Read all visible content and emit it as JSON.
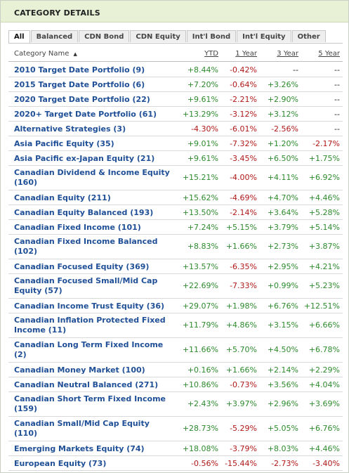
{
  "panel": {
    "title": "CATEGORY DETAILS"
  },
  "tabs": [
    {
      "label": "All",
      "active": true
    },
    {
      "label": "Balanced",
      "active": false
    },
    {
      "label": "CDN Bond",
      "active": false
    },
    {
      "label": "CDN Equity",
      "active": false
    },
    {
      "label": "Int'l Bond",
      "active": false
    },
    {
      "label": "Int'l Equity",
      "active": false
    },
    {
      "label": "Other",
      "active": false
    }
  ],
  "columns": {
    "name": "Category Name",
    "sort_indicator": "▲",
    "ytd": "YTD",
    "y1": "1 Year",
    "y3": "3 Year",
    "y5": "5 Year"
  },
  "colors": {
    "positive": "#2e8b2e",
    "negative": "#b01818",
    "link": "#1f4f96",
    "header_bg": "#e8f0d6"
  },
  "rows": [
    {
      "name": "2010 Target Date Portfolio (9)",
      "ytd": "+8.44%",
      "y1": "-0.42%",
      "y3": "--",
      "y5": "--"
    },
    {
      "name": "2015 Target Date Portfolio (6)",
      "ytd": "+7.20%",
      "y1": "-0.64%",
      "y3": "+3.26%",
      "y5": "--"
    },
    {
      "name": "2020 Target Date Portfolio (22)",
      "ytd": "+9.61%",
      "y1": "-2.21%",
      "y3": "+2.90%",
      "y5": "--"
    },
    {
      "name": "2020+ Target Date Portfolio (61)",
      "ytd": "+13.29%",
      "y1": "-3.12%",
      "y3": "+3.12%",
      "y5": "--"
    },
    {
      "name": "Alternative Strategies (3)",
      "ytd": "-4.30%",
      "y1": "-6.01%",
      "y3": "-2.56%",
      "y5": "--"
    },
    {
      "name": "Asia Pacific Equity (35)",
      "ytd": "+9.01%",
      "y1": "-7.32%",
      "y3": "+1.20%",
      "y5": "-2.17%"
    },
    {
      "name": "Asia Pacific ex-Japan Equity (21)",
      "ytd": "+9.61%",
      "y1": "-3.45%",
      "y3": "+6.50%",
      "y5": "+1.75%"
    },
    {
      "name": "Canadian Dividend & Income Equity (160)",
      "ytd": "+15.21%",
      "y1": "-4.00%",
      "y3": "+4.11%",
      "y5": "+6.92%"
    },
    {
      "name": "Canadian Equity (211)",
      "ytd": "+15.62%",
      "y1": "-4.69%",
      "y3": "+4.70%",
      "y5": "+4.46%"
    },
    {
      "name": "Canadian Equity Balanced (193)",
      "ytd": "+13.50%",
      "y1": "-2.14%",
      "y3": "+3.64%",
      "y5": "+5.28%"
    },
    {
      "name": "Canadian Fixed Income (101)",
      "ytd": "+7.24%",
      "y1": "+5.15%",
      "y3": "+3.79%",
      "y5": "+5.14%"
    },
    {
      "name": "Canadian Fixed Income Balanced (102)",
      "ytd": "+8.83%",
      "y1": "+1.66%",
      "y3": "+2.73%",
      "y5": "+3.87%"
    },
    {
      "name": "Canadian Focused Equity (369)",
      "ytd": "+13.57%",
      "y1": "-6.35%",
      "y3": "+2.95%",
      "y5": "+4.21%"
    },
    {
      "name": "Canadian Focused Small/Mid Cap Equity (57)",
      "ytd": "+22.69%",
      "y1": "-7.33%",
      "y3": "+0.99%",
      "y5": "+5.23%"
    },
    {
      "name": "Canadian Income Trust Equity (36)",
      "ytd": "+29.07%",
      "y1": "+1.98%",
      "y3": "+6.76%",
      "y5": "+12.51%"
    },
    {
      "name": "Canadian Inflation Protected Fixed Income (11)",
      "ytd": "+11.79%",
      "y1": "+4.86%",
      "y3": "+3.15%",
      "y5": "+6.66%"
    },
    {
      "name": "Canadian Long Term Fixed Income (2)",
      "ytd": "+11.66%",
      "y1": "+5.70%",
      "y3": "+4.50%",
      "y5": "+6.78%"
    },
    {
      "name": "Canadian Money Market (100)",
      "ytd": "+0.16%",
      "y1": "+1.66%",
      "y3": "+2.14%",
      "y5": "+2.29%"
    },
    {
      "name": "Canadian Neutral Balanced (271)",
      "ytd": "+10.86%",
      "y1": "-0.73%",
      "y3": "+3.56%",
      "y5": "+4.04%"
    },
    {
      "name": "Canadian Short Term Fixed Income (159)",
      "ytd": "+2.43%",
      "y1": "+3.97%",
      "y3": "+2.96%",
      "y5": "+3.69%"
    },
    {
      "name": "Canadian Small/Mid Cap Equity (110)",
      "ytd": "+28.73%",
      "y1": "-5.29%",
      "y3": "+5.05%",
      "y5": "+6.76%"
    },
    {
      "name": "Emerging Markets Equity (74)",
      "ytd": "+18.08%",
      "y1": "-3.79%",
      "y3": "+8.03%",
      "y5": "+4.46%"
    },
    {
      "name": "European Equity (73)",
      "ytd": "-0.56%",
      "y1": "-15.44%",
      "y3": "-2.73%",
      "y5": "-3.40%"
    }
  ]
}
